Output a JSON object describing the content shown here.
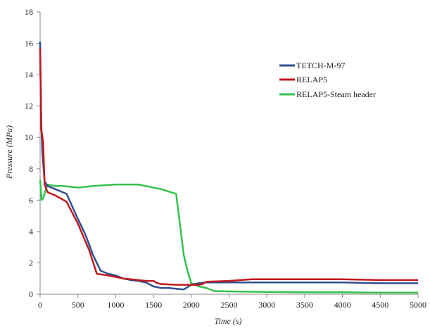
{
  "chart_data": {
    "type": "line",
    "title": "",
    "xlabel": "Time (s)",
    "ylabel": "Pressure (MPa)",
    "xlim": [
      0,
      5000
    ],
    "ylim": [
      0,
      18
    ],
    "xticks": [
      0,
      500,
      1000,
      1500,
      2000,
      2500,
      3000,
      3500,
      4000,
      4500,
      5000
    ],
    "yticks": [
      0,
      2,
      4,
      6,
      8,
      10,
      12,
      14,
      16,
      18
    ],
    "grid": false,
    "legend_position": "right",
    "series": [
      {
        "name": "TETCH-M-97",
        "color": "#2f4f8f",
        "x": [
          0,
          15,
          30,
          60,
          100,
          200,
          350,
          500,
          600,
          700,
          800,
          900,
          1000,
          1100,
          1200,
          1300,
          1400,
          1500,
          1600,
          1700,
          1800,
          1900,
          2000,
          2100,
          2200,
          2500,
          3000,
          3500,
          4000,
          4500,
          5000
        ],
        "y": [
          16.1,
          11.0,
          9.0,
          7.2,
          6.9,
          6.7,
          6.4,
          4.8,
          3.8,
          2.5,
          1.5,
          1.3,
          1.2,
          1.0,
          0.9,
          0.85,
          0.75,
          0.5,
          0.4,
          0.4,
          0.35,
          0.3,
          0.6,
          0.7,
          0.75,
          0.75,
          0.75,
          0.75,
          0.75,
          0.7,
          0.7
        ]
      },
      {
        "name": "RELAP5",
        "color": "#c0191e",
        "x": [
          0,
          15,
          40,
          60,
          100,
          200,
          350,
          500,
          650,
          750,
          900,
          1000,
          1100,
          1200,
          1300,
          1400,
          1500,
          1550,
          1600,
          1800,
          2000,
          2100,
          2150,
          2200,
          2500,
          2800,
          3000,
          3500,
          4000,
          4500,
          5000
        ],
        "y": [
          15.7,
          10.5,
          9.7,
          7.0,
          6.5,
          6.3,
          5.9,
          4.5,
          2.8,
          1.3,
          1.2,
          1.1,
          1.0,
          0.95,
          0.9,
          0.85,
          0.85,
          0.7,
          0.65,
          0.6,
          0.6,
          0.6,
          0.65,
          0.8,
          0.85,
          0.95,
          0.95,
          0.95,
          0.95,
          0.9,
          0.9
        ]
      },
      {
        "name": "RELAP5-Steam header",
        "color": "#33c24d",
        "x": [
          0,
          20,
          40,
          70,
          100,
          200,
          300,
          500,
          700,
          1000,
          1300,
          1400,
          1600,
          1800,
          1900,
          1950,
          2000,
          2100,
          2200,
          2300,
          2500,
          3000,
          3500,
          4000,
          4500,
          5000
        ],
        "y": [
          7.3,
          6.0,
          6.1,
          6.6,
          7.0,
          6.9,
          6.9,
          6.8,
          6.9,
          7.0,
          7.0,
          6.9,
          6.7,
          6.4,
          2.5,
          1.5,
          0.7,
          0.5,
          0.4,
          0.2,
          0.18,
          0.15,
          0.12,
          0.12,
          0.1,
          0.1
        ]
      }
    ]
  }
}
